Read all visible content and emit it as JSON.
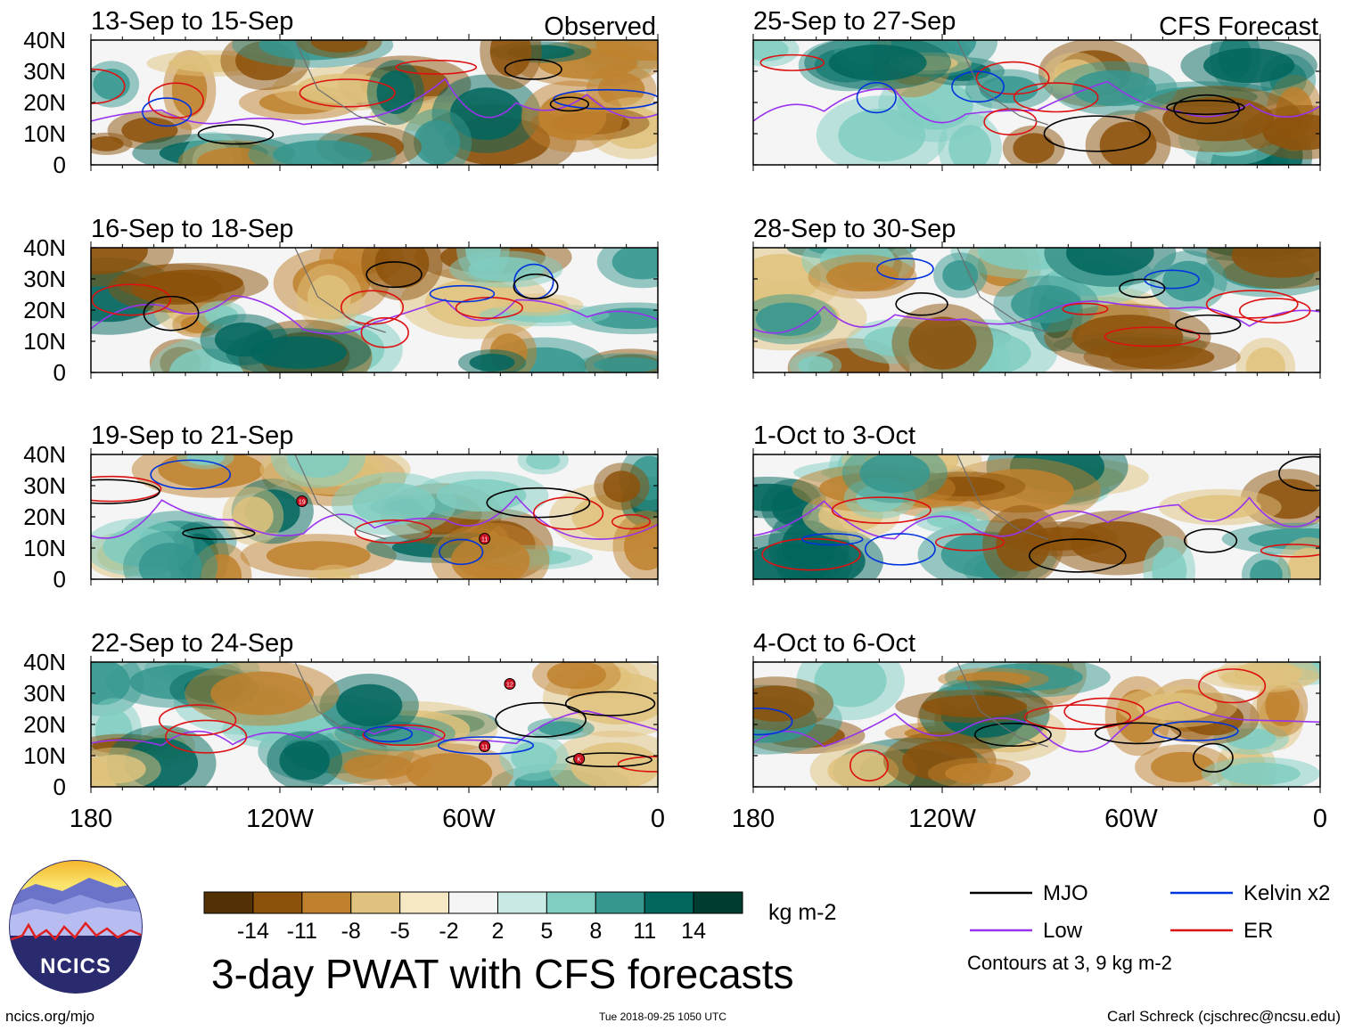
{
  "chart_data": {
    "type": "heatmap",
    "title": "3-day PWAT with CFS forecasts",
    "variable": "Precipitable water anomaly",
    "units": "kg m-2",
    "columns": [
      {
        "heading": "Observed",
        "panels": [
          {
            "label": "13-Sep to 15-Sep",
            "storms": []
          },
          {
            "label": "16-Sep to 18-Sep",
            "storms": []
          },
          {
            "label": "19-Sep to 21-Sep",
            "storms": [
              {
                "id": "19",
                "lon": -113,
                "lat": 25
              },
              {
                "id": "11",
                "lon": -55,
                "lat": 13
              }
            ]
          },
          {
            "label": "22-Sep to 24-Sep",
            "storms": [
              {
                "id": "12",
                "lon": -47,
                "lat": 33
              },
              {
                "id": "11",
                "lon": -55,
                "lat": 13
              },
              {
                "id": "K",
                "lon": -25,
                "lat": 9
              }
            ]
          }
        ]
      },
      {
        "heading": "CFS Forecast",
        "panels": [
          {
            "label": "25-Sep to 27-Sep",
            "storms": []
          },
          {
            "label": "28-Sep to 30-Sep",
            "storms": []
          },
          {
            "label": "1-Oct to 3-Oct",
            "storms": []
          },
          {
            "label": "4-Oct to 6-Oct",
            "storms": []
          }
        ]
      }
    ],
    "x_axis": {
      "ticks": [
        -180,
        -120,
        -60,
        0
      ],
      "tick_labels": [
        "180",
        "120W",
        "60W",
        "0"
      ],
      "range": [
        -180,
        0
      ]
    },
    "y_axis": {
      "ticks": [
        0,
        10,
        20,
        30,
        40
      ],
      "tick_labels": [
        "0",
        "10N",
        "20N",
        "30N",
        "40N"
      ],
      "range": [
        0,
        40
      ]
    },
    "colorbar": {
      "labels": [
        "-14",
        "-11",
        "-8",
        "-5",
        "-2",
        "2",
        "5",
        "8",
        "11",
        "14"
      ],
      "levels": [
        -14,
        -11,
        -8,
        -5,
        -2,
        2,
        5,
        8,
        11,
        14
      ],
      "colors": [
        "#543005",
        "#8c510a",
        "#bf812d",
        "#dfc27d",
        "#f6e8c3",
        "#f5f5f5",
        "#c7eae5",
        "#80cdc1",
        "#35978f",
        "#01665e",
        "#003c30"
      ]
    },
    "legend": [
      {
        "label": "MJO",
        "color": "#000000"
      },
      {
        "label": "Kelvin x2",
        "color": "#0033dd"
      },
      {
        "label": "Low",
        "color": "#9933ee"
      },
      {
        "label": "ER",
        "color": "#dd1111"
      }
    ],
    "contour_levels": [
      3,
      9
    ],
    "contours_note": "Contours at 3, 9 kg m-2"
  },
  "logo": {
    "text": "NCICS"
  },
  "footer": {
    "left": "ncics.org/mjo",
    "middle": "Tue 2018-09-25 1050 UTC",
    "right": "Carl Schreck (cjschrec@ncsu.edu)"
  }
}
